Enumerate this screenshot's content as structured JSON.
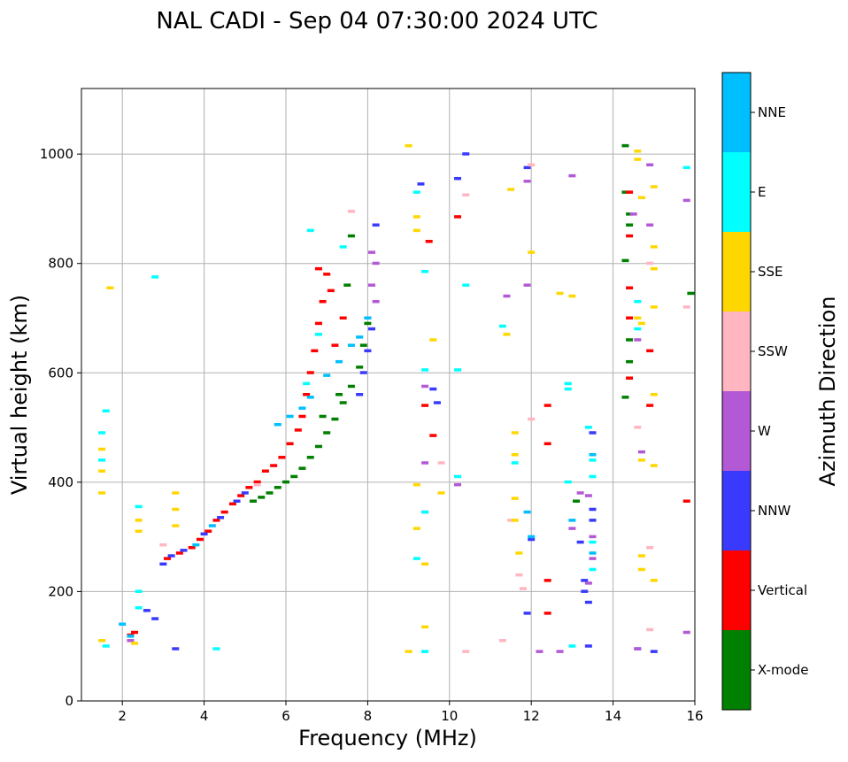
{
  "chart_data": {
    "type": "scatter",
    "title": "NAL CADI - Sep 04 07:30:00 2024 UTC",
    "xlabel": "Frequency (MHz)",
    "ylabel": "Virtual height (km)",
    "xlim": [
      1,
      16
    ],
    "ylim": [
      0,
      1120
    ],
    "xticks": [
      2,
      4,
      6,
      8,
      10,
      12,
      14,
      16
    ],
    "xtick_labels": [
      "2",
      "4",
      "6",
      "8",
      "10",
      "12",
      "14",
      "16"
    ],
    "yticks": [
      0,
      200,
      400,
      600,
      800,
      1000
    ],
    "ytick_labels": [
      "0",
      "200",
      "400",
      "600",
      "800",
      "1000"
    ],
    "grid": true,
    "colorbar": {
      "label": "Azimuth Direction",
      "categories": [
        "X-mode",
        "Vertical",
        "NNW",
        "W",
        "SSW",
        "SSE",
        "E",
        "NNE"
      ],
      "colors": [
        "#008000",
        "#ff0000",
        "#3a3aff",
        "#b459d6",
        "#ffb6c1",
        "#ffd700",
        "#00ffff",
        "#00bfff"
      ]
    },
    "series": [
      {
        "name": "X-mode",
        "points": [
          [
            5.2,
            365
          ],
          [
            5.4,
            372
          ],
          [
            5.6,
            380
          ],
          [
            5.8,
            390
          ],
          [
            6.0,
            400
          ],
          [
            6.2,
            410
          ],
          [
            6.4,
            425
          ],
          [
            6.6,
            445
          ],
          [
            6.8,
            465
          ],
          [
            7.0,
            490
          ],
          [
            7.2,
            515
          ],
          [
            7.4,
            545
          ],
          [
            7.6,
            575
          ],
          [
            7.8,
            610
          ],
          [
            7.9,
            650
          ],
          [
            8.0,
            690
          ],
          [
            7.5,
            760
          ],
          [
            7.6,
            850
          ],
          [
            6.9,
            520
          ],
          [
            7.3,
            560
          ],
          [
            14.3,
            1015
          ],
          [
            14.3,
            930
          ],
          [
            14.4,
            890
          ],
          [
            14.4,
            870
          ],
          [
            14.3,
            805
          ],
          [
            14.4,
            660
          ],
          [
            14.4,
            620
          ],
          [
            14.3,
            555
          ],
          [
            15.9,
            745
          ],
          [
            13.1,
            365
          ]
        ]
      },
      {
        "name": "Vertical",
        "points": [
          [
            3.1,
            260
          ],
          [
            3.4,
            270
          ],
          [
            3.7,
            280
          ],
          [
            3.9,
            295
          ],
          [
            4.1,
            310
          ],
          [
            4.3,
            330
          ],
          [
            4.5,
            345
          ],
          [
            4.7,
            360
          ],
          [
            4.9,
            375
          ],
          [
            5.1,
            390
          ],
          [
            5.3,
            400
          ],
          [
            5.5,
            420
          ],
          [
            5.7,
            430
          ],
          [
            5.9,
            445
          ],
          [
            6.1,
            470
          ],
          [
            6.3,
            495
          ],
          [
            6.4,
            520
          ],
          [
            6.5,
            560
          ],
          [
            6.6,
            600
          ],
          [
            6.7,
            640
          ],
          [
            6.8,
            690
          ],
          [
            6.9,
            730
          ],
          [
            7.0,
            780
          ],
          [
            7.2,
            650
          ],
          [
            7.4,
            700
          ],
          [
            6.8,
            790
          ],
          [
            7.1,
            750
          ],
          [
            2.2,
            120
          ],
          [
            2.3,
            125
          ],
          [
            9.5,
            840
          ],
          [
            9.6,
            485
          ],
          [
            9.4,
            540
          ],
          [
            10.2,
            885
          ],
          [
            12.4,
            540
          ],
          [
            12.4,
            470
          ],
          [
            12.4,
            220
          ],
          [
            12.4,
            160
          ],
          [
            14.4,
            930
          ],
          [
            14.4,
            850
          ],
          [
            14.4,
            755
          ],
          [
            14.4,
            700
          ],
          [
            14.4,
            590
          ],
          [
            14.9,
            640
          ],
          [
            14.9,
            540
          ],
          [
            15.8,
            365
          ]
        ]
      },
      {
        "name": "NNW",
        "points": [
          [
            3.0,
            250
          ],
          [
            3.2,
            265
          ],
          [
            3.5,
            275
          ],
          [
            4.0,
            305
          ],
          [
            4.4,
            335
          ],
          [
            4.8,
            365
          ],
          [
            5.0,
            380
          ],
          [
            7.8,
            560
          ],
          [
            7.9,
            600
          ],
          [
            8.0,
            640
          ],
          [
            8.1,
            680
          ],
          [
            8.2,
            870
          ],
          [
            9.3,
            945
          ],
          [
            9.6,
            570
          ],
          [
            9.7,
            545
          ],
          [
            10.4,
            1000
          ],
          [
            10.2,
            955
          ],
          [
            11.9,
            975
          ],
          [
            11.9,
            160
          ],
          [
            12.0,
            295
          ],
          [
            13.2,
            290
          ],
          [
            13.3,
            220
          ],
          [
            13.3,
            200
          ],
          [
            13.4,
            180
          ],
          [
            13.4,
            100
          ],
          [
            13.5,
            490
          ],
          [
            13.5,
            350
          ],
          [
            13.5,
            330
          ],
          [
            15.0,
            90
          ],
          [
            14.6,
            95
          ],
          [
            2.6,
            165
          ],
          [
            2.8,
            150
          ],
          [
            3.3,
            95
          ]
        ]
      },
      {
        "name": "W",
        "points": [
          [
            8.1,
            820
          ],
          [
            8.2,
            800
          ],
          [
            8.1,
            760
          ],
          [
            8.2,
            730
          ],
          [
            8.0,
            700
          ],
          [
            11.9,
            760
          ],
          [
            11.9,
            950
          ],
          [
            11.4,
            740
          ],
          [
            13.0,
            960
          ],
          [
            13.2,
            380
          ],
          [
            13.4,
            375
          ],
          [
            13.5,
            300
          ],
          [
            13.5,
            260
          ],
          [
            13.4,
            215
          ],
          [
            12.2,
            90
          ],
          [
            12.7,
            90
          ],
          [
            13.0,
            315
          ],
          [
            14.5,
            890
          ],
          [
            14.6,
            660
          ],
          [
            14.9,
            980
          ],
          [
            14.9,
            870
          ],
          [
            15.8,
            915
          ],
          [
            15.8,
            125
          ],
          [
            14.7,
            455
          ],
          [
            14.6,
            95
          ],
          [
            9.4,
            575
          ],
          [
            9.4,
            435
          ],
          [
            9.4,
            345
          ],
          [
            10.2,
            395
          ],
          [
            2.2,
            110
          ]
        ]
      },
      {
        "name": "SSW",
        "points": [
          [
            3.0,
            285
          ],
          [
            5.3,
            395
          ],
          [
            7.6,
            895
          ],
          [
            11.5,
            330
          ],
          [
            11.7,
            230
          ],
          [
            11.8,
            205
          ],
          [
            11.3,
            110
          ],
          [
            12.0,
            515
          ],
          [
            14.6,
            500
          ],
          [
            14.9,
            800
          ],
          [
            14.9,
            130
          ],
          [
            14.9,
            280
          ],
          [
            15.8,
            720
          ],
          [
            10.4,
            90
          ],
          [
            10.4,
            925
          ],
          [
            9.8,
            435
          ],
          [
            12.0,
            980
          ]
        ]
      },
      {
        "name": "SSE",
        "points": [
          [
            1.5,
            110
          ],
          [
            1.5,
            380
          ],
          [
            1.5,
            420
          ],
          [
            1.5,
            460
          ],
          [
            2.4,
            330
          ],
          [
            2.4,
            310
          ],
          [
            2.3,
            105
          ],
          [
            1.7,
            755
          ],
          [
            3.3,
            380
          ],
          [
            3.3,
            350
          ],
          [
            3.3,
            320
          ],
          [
            9.0,
            1015
          ],
          [
            9.2,
            885
          ],
          [
            9.2,
            860
          ],
          [
            9.2,
            395
          ],
          [
            9.2,
            315
          ],
          [
            9.4,
            250
          ],
          [
            9.4,
            135
          ],
          [
            9.0,
            90
          ],
          [
            9.6,
            660
          ],
          [
            9.8,
            380
          ],
          [
            11.4,
            670
          ],
          [
            11.5,
            935
          ],
          [
            11.6,
            490
          ],
          [
            11.6,
            450
          ],
          [
            11.6,
            370
          ],
          [
            11.6,
            330
          ],
          [
            11.7,
            270
          ],
          [
            12.0,
            820
          ],
          [
            12.7,
            745
          ],
          [
            13.0,
            740
          ],
          [
            14.6,
            1005
          ],
          [
            14.6,
            990
          ],
          [
            14.7,
            920
          ],
          [
            14.6,
            700
          ],
          [
            14.7,
            690
          ],
          [
            14.7,
            440
          ],
          [
            14.7,
            265
          ],
          [
            14.7,
            240
          ],
          [
            15.0,
            940
          ],
          [
            15.0,
            830
          ],
          [
            15.0,
            790
          ],
          [
            15.0,
            720
          ],
          [
            15.0,
            560
          ],
          [
            15.0,
            430
          ],
          [
            15.0,
            220
          ]
        ]
      },
      {
        "name": "E",
        "points": [
          [
            1.5,
            490
          ],
          [
            1.5,
            440
          ],
          [
            1.6,
            530
          ],
          [
            1.6,
            100
          ],
          [
            2.4,
            200
          ],
          [
            2.4,
            170
          ],
          [
            2.4,
            355
          ],
          [
            2.8,
            775
          ],
          [
            4.3,
            95
          ],
          [
            6.6,
            860
          ],
          [
            6.8,
            670
          ],
          [
            6.5,
            580
          ],
          [
            7.4,
            830
          ],
          [
            9.2,
            930
          ],
          [
            9.4,
            785
          ],
          [
            9.4,
            605
          ],
          [
            9.4,
            345
          ],
          [
            9.2,
            260
          ],
          [
            10.2,
            605
          ],
          [
            10.4,
            760
          ],
          [
            10.2,
            410
          ],
          [
            11.3,
            685
          ],
          [
            11.6,
            435
          ],
          [
            12.9,
            580
          ],
          [
            12.9,
            570
          ],
          [
            12.9,
            400
          ],
          [
            13.4,
            500
          ],
          [
            13.5,
            440
          ],
          [
            13.5,
            410
          ],
          [
            13.5,
            290
          ],
          [
            13.5,
            240
          ],
          [
            14.6,
            730
          ],
          [
            14.6,
            680
          ],
          [
            15.8,
            975
          ],
          [
            13.0,
            100
          ],
          [
            9.4,
            90
          ]
        ]
      },
      {
        "name": "NNE",
        "points": [
          [
            5.8,
            505
          ],
          [
            6.1,
            520
          ],
          [
            6.4,
            535
          ],
          [
            6.6,
            555
          ],
          [
            7.0,
            595
          ],
          [
            7.3,
            620
          ],
          [
            7.6,
            650
          ],
          [
            7.8,
            665
          ],
          [
            8.0,
            700
          ],
          [
            11.9,
            345
          ],
          [
            12.0,
            300
          ],
          [
            13.0,
            330
          ],
          [
            13.5,
            450
          ],
          [
            13.5,
            270
          ],
          [
            2.0,
            140
          ],
          [
            2.2,
            118
          ],
          [
            3.8,
            285
          ],
          [
            4.2,
            320
          ]
        ]
      }
    ]
  }
}
